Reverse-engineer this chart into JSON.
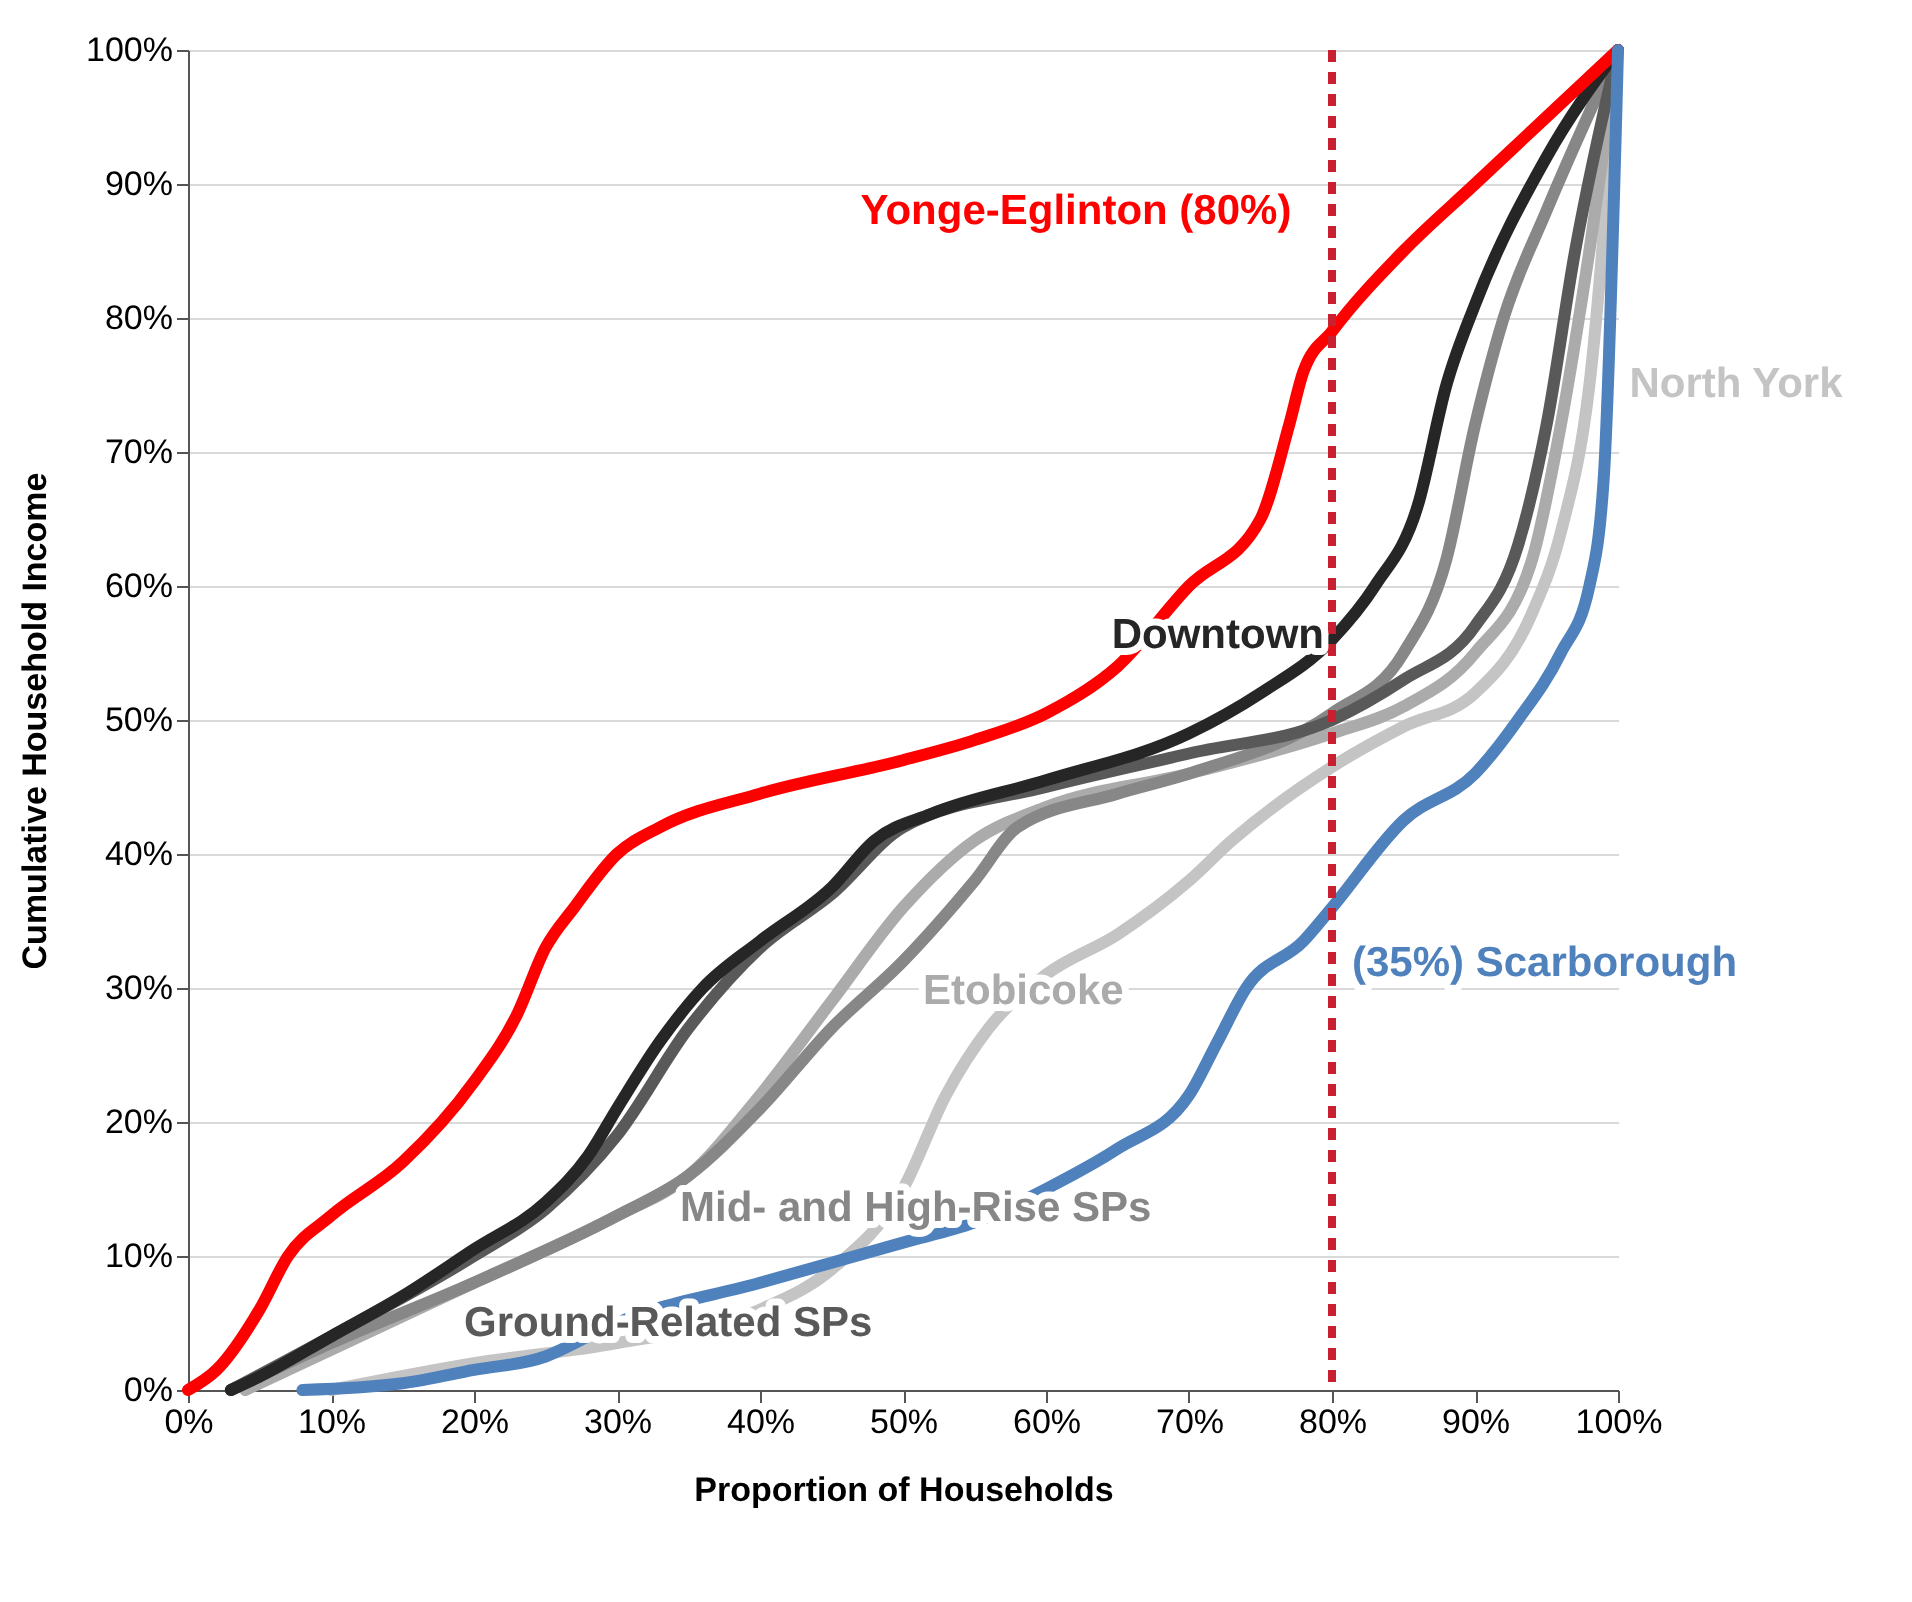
{
  "chart_data": {
    "type": "line",
    "xlabel": "Proportion of Households",
    "ylabel": "Cumulative Household Income",
    "xlim": [
      0,
      100
    ],
    "ylim": [
      0,
      100
    ],
    "xticks": [
      {
        "value": 0,
        "label": "0%"
      },
      {
        "value": 10,
        "label": "10%"
      },
      {
        "value": 20,
        "label": "20%"
      },
      {
        "value": 30,
        "label": "30%"
      },
      {
        "value": 40,
        "label": "40%"
      },
      {
        "value": 50,
        "label": "50%"
      },
      {
        "value": 60,
        "label": "60%"
      },
      {
        "value": 70,
        "label": "70%"
      },
      {
        "value": 80,
        "label": "80%"
      },
      {
        "value": 90,
        "label": "90%"
      },
      {
        "value": 100,
        "label": "100%"
      }
    ],
    "yticks": [
      {
        "value": 0,
        "label": "0%"
      },
      {
        "value": 10,
        "label": "10%"
      },
      {
        "value": 20,
        "label": "20%"
      },
      {
        "value": 30,
        "label": "30%"
      },
      {
        "value": 40,
        "label": "40%"
      },
      {
        "value": 50,
        "label": "50%"
      },
      {
        "value": 60,
        "label": "60%"
      },
      {
        "value": 70,
        "label": "70%"
      },
      {
        "value": 80,
        "label": "80%"
      },
      {
        "value": 90,
        "label": "90%"
      },
      {
        "value": 100,
        "label": "100%"
      }
    ],
    "grid": "y",
    "legend": false,
    "marker": "none",
    "line_style": "solid",
    "ref_lines": [
      {
        "axis": "x",
        "value": 80,
        "color": "#c8202f",
        "line_style": "dashed"
      }
    ],
    "series": [
      {
        "name": "North York",
        "color": "#c4c4c4",
        "x": [
          10,
          20,
          30,
          40,
          45,
          50,
          53,
          56,
          60,
          65,
          70,
          73,
          80,
          85,
          90,
          94,
          96,
          98,
          100
        ],
        "values": [
          0,
          2,
          3.5,
          6,
          9,
          15,
          22,
          27,
          31,
          34,
          38,
          41,
          46.5,
          49.5,
          52,
          58,
          64,
          75,
          100
        ]
      },
      {
        "name": "Etobicoke",
        "color": "#ababab",
        "x": [
          4,
          10,
          20,
          30,
          35,
          40,
          45,
          50,
          55,
          60,
          70,
          80,
          85,
          90,
          94,
          96,
          98,
          100
        ],
        "values": [
          0,
          3,
          8,
          13,
          16,
          22,
          29,
          36,
          41,
          43.5,
          46,
          49,
          51,
          55,
          62,
          72,
          85,
          100
        ]
      },
      {
        "name": "Mid- and High-Rise SPs",
        "color": "#878787",
        "x": [
          3,
          10,
          20,
          30,
          35,
          40,
          45,
          50,
          55,
          58,
          65,
          70,
          80,
          85,
          88,
          90,
          92,
          95,
          100
        ],
        "values": [
          0,
          3.5,
          8,
          13,
          16,
          21,
          27,
          32,
          38,
          42,
          44.5,
          46,
          50.5,
          55,
          62,
          72,
          80,
          88,
          100
        ]
      },
      {
        "name": "Ground-Related SPs",
        "color": "#595959",
        "x": [
          3,
          10,
          20,
          25,
          30,
          35,
          40,
          45,
          50,
          60,
          70,
          80,
          85,
          90,
          93,
          95,
          97,
          100
        ],
        "values": [
          0,
          4,
          10,
          13.5,
          19,
          27,
          33,
          37,
          42,
          45,
          47.5,
          50,
          53,
          57,
          63,
          72,
          85,
          100
        ]
      },
      {
        "name": "Downtown",
        "color": "#262626",
        "x": [
          3,
          5,
          10,
          15,
          20,
          25,
          28,
          30,
          33,
          36,
          40,
          45,
          48,
          52,
          60,
          70,
          75,
          80,
          83,
          86,
          88,
          90,
          95,
          100
        ],
        "values": [
          0,
          1,
          4,
          7,
          10.5,
          14,
          17.5,
          21,
          26,
          30,
          33.5,
          37.5,
          41,
          43,
          45.5,
          49,
          52,
          56,
          60,
          66,
          75,
          81,
          92,
          100
        ]
      },
      {
        "name": "Yonge-Eglinton (80%)",
        "color": "#ff0000",
        "x": [
          0,
          2,
          5,
          7,
          10,
          15,
          20,
          23,
          25,
          27,
          30,
          33,
          40,
          50,
          55,
          60,
          65,
          70,
          75,
          77,
          78,
          80,
          85,
          90,
          95,
          100
        ],
        "values": [
          0,
          1.5,
          6,
          10,
          13,
          17,
          23,
          28,
          33,
          36,
          40,
          42,
          44.5,
          47,
          48.5,
          50.5,
          54,
          60,
          65,
          72,
          76,
          79,
          85,
          90,
          95,
          100
        ]
      },
      {
        "name": "(35%) Scarborough",
        "color": "#4f81bd",
        "x": [
          8,
          15,
          20,
          25,
          28,
          30,
          40,
          50,
          55,
          60,
          65,
          70,
          72,
          74,
          78,
          80,
          85,
          90,
          93,
          96,
          98,
          99,
          100
        ],
        "values": [
          0,
          0.5,
          1.5,
          2.5,
          4,
          5,
          8,
          11,
          12.5,
          15,
          18,
          22,
          26,
          30,
          33.5,
          36,
          42.5,
          46,
          50,
          55,
          60,
          68,
          100
        ]
      }
    ]
  }
}
